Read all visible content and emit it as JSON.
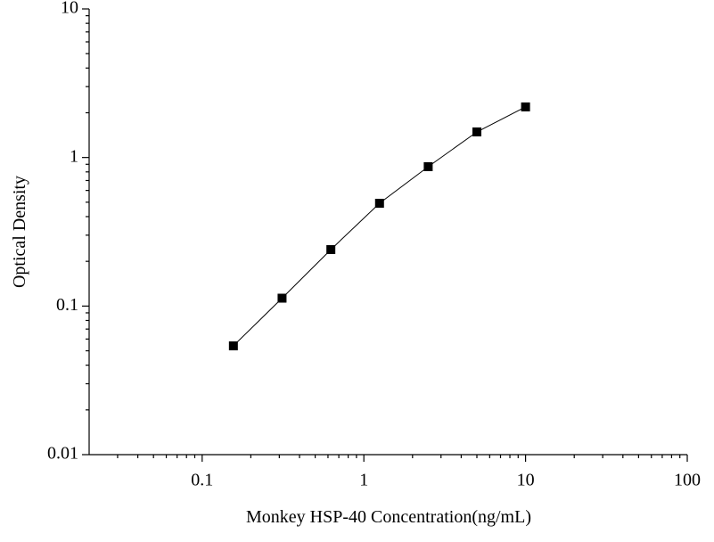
{
  "chart_data": {
    "type": "line",
    "xlabel": "Monkey HSP-40 Concentration(ng/mL)",
    "ylabel": "Optical Density",
    "x": [
      0.156,
      0.312,
      0.625,
      1.25,
      2.5,
      5,
      10
    ],
    "values": [
      0.054,
      0.113,
      0.24,
      0.492,
      0.867,
      1.486,
      2.19
    ],
    "color": "#000000",
    "marker": "square",
    "xscale": "log",
    "yscale": "log",
    "xlim": [
      0.02,
      100
    ],
    "ylim": [
      0.01,
      10
    ],
    "xticks": [
      0.1,
      1,
      10,
      100
    ],
    "yticks": [
      0.01,
      0.1,
      1,
      10
    ],
    "xminorticks": [
      0.03,
      0.04,
      0.05,
      0.06,
      0.07,
      0.08,
      0.09,
      0.2,
      0.3,
      0.4,
      0.5,
      0.6,
      0.7,
      0.8,
      0.9,
      2,
      3,
      4,
      5,
      6,
      7,
      8,
      9,
      20,
      30,
      40,
      50,
      60,
      70,
      80,
      90
    ],
    "yminorticks": [
      0.02,
      0.03,
      0.04,
      0.05,
      0.06,
      0.07,
      0.08,
      0.09,
      0.2,
      0.3,
      0.4,
      0.5,
      0.6,
      0.7,
      0.8,
      0.9,
      2,
      3,
      4,
      5,
      6,
      7,
      8,
      9
    ]
  }
}
